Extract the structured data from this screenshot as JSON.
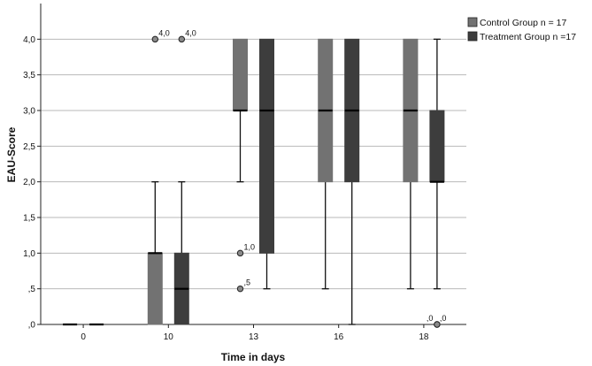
{
  "chart_data": {
    "type": "boxplot",
    "title": "",
    "xlabel": "Time in days",
    "ylabel": "EAU-Score",
    "ylim": [
      0,
      4.5
    ],
    "y_ticks": [
      "0",
      "0.5",
      "1",
      "1.5",
      "2",
      "2.5",
      "3",
      "3.5",
      "4"
    ],
    "y_tick_labels": [
      ",0",
      ",5",
      "1,0",
      "1,5",
      "2,0",
      "2,5",
      "3,0",
      "3,5",
      "4,0"
    ],
    "categories": [
      "0",
      "10",
      "13",
      "16",
      "18"
    ],
    "grid": "horizontal",
    "legend_position": "top-right",
    "series": [
      {
        "name": "Control Group n = 17",
        "color": "#727272",
        "boxes": [
          {
            "min": 0,
            "q1": 0,
            "median": 0,
            "q3": 0,
            "max": 0,
            "outliers": []
          },
          {
            "min": 0,
            "q1": 0,
            "median": 1,
            "q3": 1,
            "max": 2,
            "outliers": [
              {
                "value": 4,
                "label": "4,0"
              }
            ]
          },
          {
            "min": 2,
            "q1": 3,
            "median": 3,
            "q3": 4,
            "max": 4,
            "outliers": [
              {
                "value": 1,
                "label": "1,0"
              },
              {
                "value": 0.5,
                "label": ",5"
              }
            ]
          },
          {
            "min": 0.5,
            "q1": 2,
            "median": 3,
            "q3": 4,
            "max": 4,
            "outliers": []
          },
          {
            "min": 0.5,
            "q1": 2,
            "median": 3,
            "q3": 4,
            "max": 4,
            "outliers": []
          }
        ]
      },
      {
        "name": "Treatment Group n =17",
        "color": "#3d3d3d",
        "boxes": [
          {
            "min": 0,
            "q1": 0,
            "median": 0,
            "q3": 0,
            "max": 0,
            "outliers": []
          },
          {
            "min": 0,
            "q1": 0,
            "median": 0.5,
            "q3": 1,
            "max": 2,
            "outliers": [
              {
                "value": 4,
                "label": "4,0"
              }
            ]
          },
          {
            "min": 0.5,
            "q1": 1,
            "median": 3,
            "q3": 4,
            "max": 4,
            "outliers": []
          },
          {
            "min": 0,
            "q1": 2,
            "median": 3,
            "q3": 4,
            "max": 4,
            "outliers": []
          },
          {
            "min": 0.5,
            "q1": 2,
            "median": 2,
            "q3": 3,
            "max": 4,
            "outliers": [
              {
                "value": 0,
                "label": ",0"
              },
              {
                "value": 0,
                "label": ",0"
              }
            ]
          }
        ]
      }
    ]
  }
}
